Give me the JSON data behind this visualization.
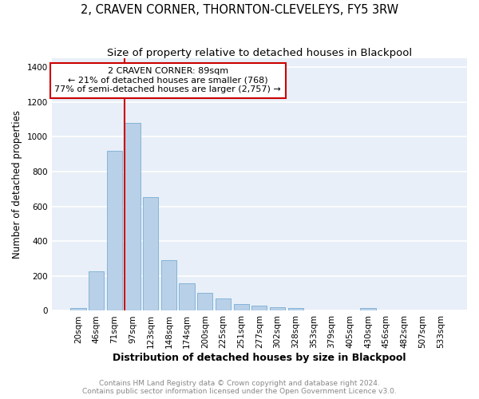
{
  "title": "2, CRAVEN CORNER, THORNTON-CLEVELEYS, FY5 3RW",
  "subtitle": "Size of property relative to detached houses in Blackpool",
  "xlabel": "Distribution of detached houses by size in Blackpool",
  "ylabel": "Number of detached properties",
  "categories": [
    "20sqm",
    "46sqm",
    "71sqm",
    "97sqm",
    "123sqm",
    "148sqm",
    "174sqm",
    "200sqm",
    "225sqm",
    "251sqm",
    "277sqm",
    "302sqm",
    "328sqm",
    "353sqm",
    "379sqm",
    "405sqm",
    "430sqm",
    "456sqm",
    "482sqm",
    "507sqm",
    "533sqm"
  ],
  "values": [
    18,
    228,
    920,
    1080,
    655,
    290,
    158,
    105,
    70,
    38,
    28,
    20,
    18,
    0,
    0,
    0,
    18,
    0,
    0,
    0,
    0
  ],
  "bar_color": "#b8d0e8",
  "bar_edge_color": "#7aadd4",
  "background_color": "#e8eff8",
  "grid_color": "#ffffff",
  "vline_index": 3,
  "annotation_title": "2 CRAVEN CORNER: 89sqm",
  "annotation_line1": "← 21% of detached houses are smaller (768)",
  "annotation_line2": "77% of semi-detached houses are larger (2,757) →",
  "annotation_box_color": "#ffffff",
  "annotation_border_color": "#cc0000",
  "vline_color": "#cc0000",
  "ylim": [
    0,
    1450
  ],
  "yticks": [
    0,
    200,
    400,
    600,
    800,
    1000,
    1200,
    1400
  ],
  "footer_line1": "Contains HM Land Registry data © Crown copyright and database right 2024.",
  "footer_line2": "Contains public sector information licensed under the Open Government Licence v3.0.",
  "title_fontsize": 10.5,
  "subtitle_fontsize": 9.5,
  "xlabel_fontsize": 9,
  "ylabel_fontsize": 8.5,
  "tick_fontsize": 7.5,
  "annotation_fontsize": 8,
  "footer_fontsize": 6.5,
  "fig_bg": "#ffffff"
}
